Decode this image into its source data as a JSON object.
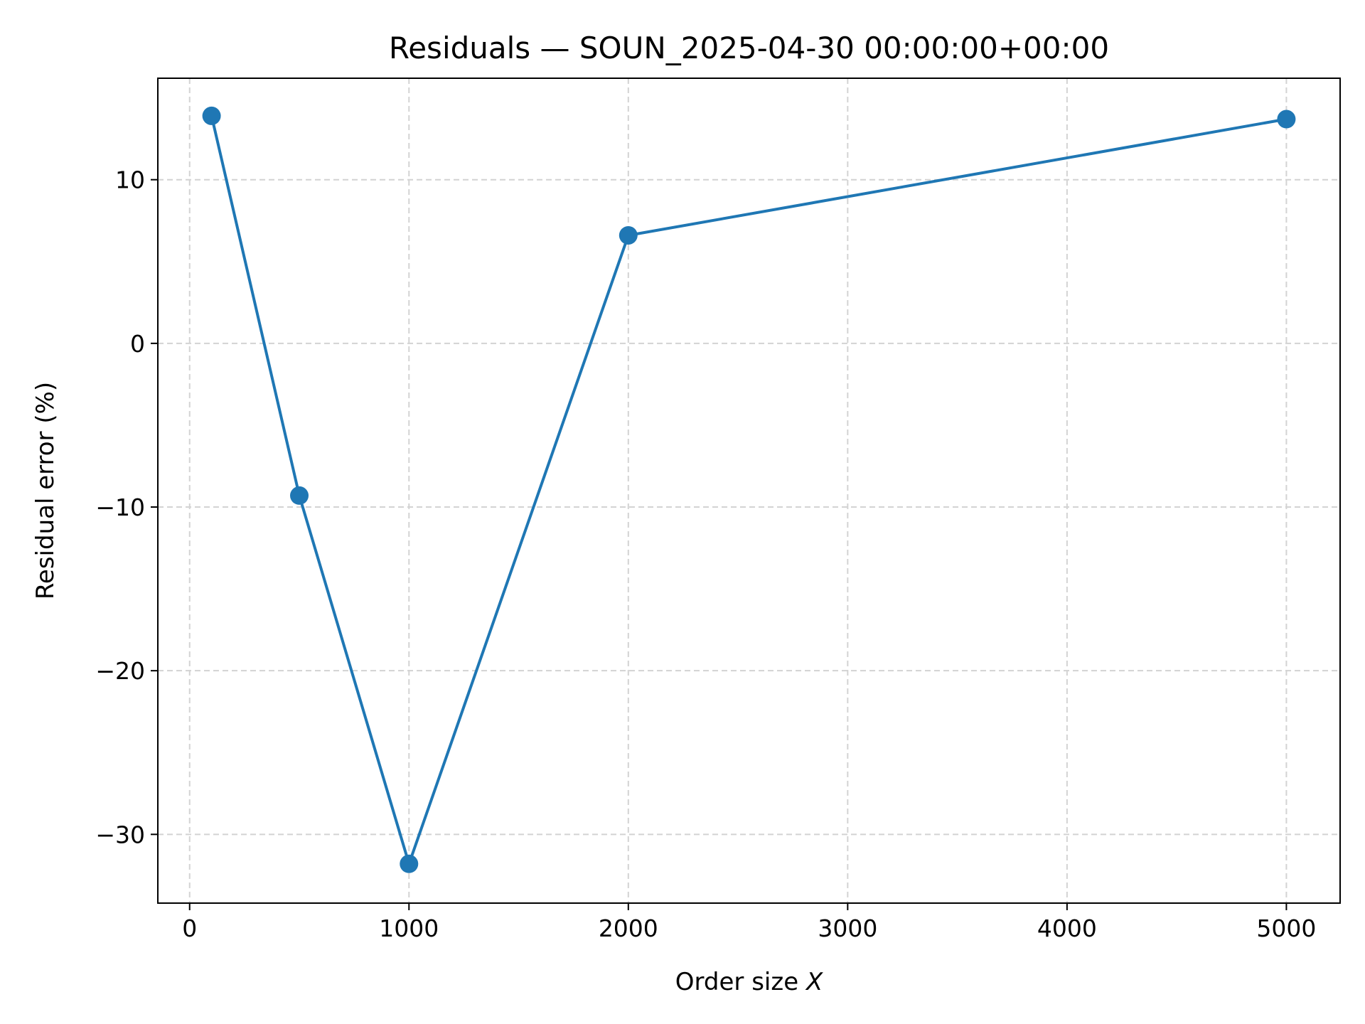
{
  "chart_data": {
    "type": "line",
    "title": "Residuals — SOUN_2025-04-30 00:00:00+00:00",
    "xlabel_prefix": "Order size ",
    "xlabel_var": "X",
    "ylabel": "Residual error (%)",
    "xlim": [
      -145,
      5245
    ],
    "ylim": [
      -34.2,
      16.2
    ],
    "x_ticks": [
      0,
      1000,
      2000,
      3000,
      4000,
      5000
    ],
    "x_tick_labels": [
      "0",
      "1000",
      "2000",
      "3000",
      "4000",
      "5000"
    ],
    "y_ticks": [
      -30,
      -20,
      -10,
      0,
      10
    ],
    "y_tick_labels": [
      "−30",
      "−20",
      "−10",
      "0",
      "10"
    ],
    "grid": true,
    "series": [
      {
        "color": "#1f77b4",
        "marker": "circle",
        "x": [
          100,
          500,
          1000,
          2000,
          5000
        ],
        "y": [
          13.9,
          -9.3,
          -31.8,
          6.6,
          13.7
        ]
      }
    ]
  }
}
